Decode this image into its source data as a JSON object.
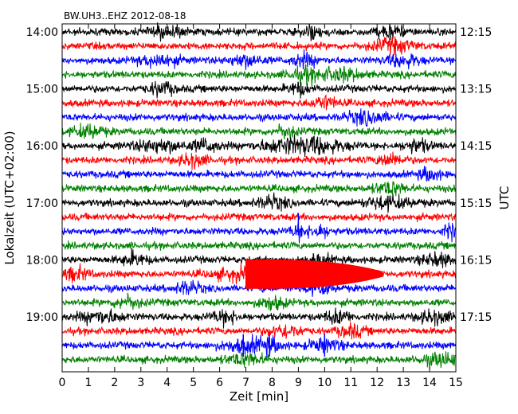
{
  "chart_data": {
    "type": "line",
    "title": "BW.UH3..EHZ 2012-08-18",
    "xlabel": "Zeit  [min]",
    "ylabel_left": "Lokalzeit (UTC+02:00)",
    "ylabel_right": "UTC",
    "xlim": [
      0,
      15
    ],
    "x_ticks": [
      "0",
      "1",
      "2",
      "3",
      "4",
      "5",
      "6",
      "7",
      "8",
      "9",
      "10",
      "11",
      "12",
      "13",
      "14",
      "15"
    ],
    "rows_per_hour": 4,
    "minutes_per_row": 15,
    "row_colors": [
      "#000000",
      "#ff0000",
      "#0000ff",
      "#008000"
    ],
    "left_ticks": [
      {
        "label": "14:00",
        "row": 0
      },
      {
        "label": "15:00",
        "row": 4
      },
      {
        "label": "16:00",
        "row": 8
      },
      {
        "label": "17:00",
        "row": 12
      },
      {
        "label": "18:00",
        "row": 16
      },
      {
        "label": "19:00",
        "row": 20
      }
    ],
    "right_ticks": [
      {
        "label": "12:15",
        "row": 0
      },
      {
        "label": "13:15",
        "row": 4
      },
      {
        "label": "14:15",
        "row": 8
      },
      {
        "label": "15:15",
        "row": 12
      },
      {
        "label": "16:15",
        "row": 16
      },
      {
        "label": "17:15",
        "row": 20
      }
    ],
    "traces": [
      {
        "row": 0,
        "color": "#000000",
        "bursts": [
          [
            4.0,
            0.6
          ],
          [
            9.5,
            0.4
          ],
          [
            12.5,
            0.5
          ]
        ]
      },
      {
        "row": 1,
        "color": "#ff0000",
        "bursts": [
          [
            12.6,
            0.8
          ]
        ]
      },
      {
        "row": 2,
        "color": "#0000ff",
        "bursts": [
          [
            3.7,
            0.7
          ],
          [
            7.0,
            0.6
          ],
          [
            9.2,
            0.5
          ],
          [
            13.0,
            0.6
          ]
        ]
      },
      {
        "row": 3,
        "color": "#008000",
        "bursts": [
          [
            9.2,
            0.6
          ],
          [
            10.6,
            0.8
          ]
        ]
      },
      {
        "row": 4,
        "color": "#000000",
        "bursts": [
          [
            3.8,
            0.5
          ],
          [
            9.0,
            0.4
          ]
        ]
      },
      {
        "row": 5,
        "color": "#ff0000",
        "bursts": [
          [
            10.0,
            0.5
          ]
        ]
      },
      {
        "row": 6,
        "color": "#0000ff",
        "bursts": [
          [
            11.6,
            0.8
          ]
        ]
      },
      {
        "row": 7,
        "color": "#008000",
        "bursts": [
          [
            1.0,
            0.6
          ],
          [
            8.5,
            0.4
          ]
        ]
      },
      {
        "row": 8,
        "color": "#000000",
        "bursts": [
          [
            3.7,
            0.9
          ],
          [
            5.5,
            0.5
          ],
          [
            8.5,
            1.1
          ],
          [
            9.8,
            1.0
          ],
          [
            13.5,
            0.5
          ]
        ]
      },
      {
        "row": 9,
        "color": "#ff0000",
        "bursts": [
          [
            5.0,
            0.5
          ],
          [
            12.5,
            0.5
          ]
        ]
      },
      {
        "row": 10,
        "color": "#0000ff",
        "bursts": [
          [
            14.0,
            0.4
          ]
        ]
      },
      {
        "row": 11,
        "color": "#008000",
        "bursts": [
          [
            12.5,
            0.6
          ]
        ]
      },
      {
        "row": 12,
        "color": "#000000",
        "bursts": [
          [
            8.0,
            0.6
          ],
          [
            12.4,
            0.9
          ]
        ]
      },
      {
        "row": 13,
        "color": "#ff0000",
        "bursts": []
      },
      {
        "row": 14,
        "color": "#0000ff",
        "bursts": [
          [
            9.0,
            0.3
          ],
          [
            9.8,
            0.4
          ],
          [
            14.8,
            0.3
          ]
        ]
      },
      {
        "row": 15,
        "color": "#008000",
        "bursts": []
      },
      {
        "row": 16,
        "color": "#000000",
        "bursts": [
          [
            2.7,
            0.5
          ],
          [
            9.7,
            0.5
          ],
          [
            14.3,
            0.6
          ]
        ]
      },
      {
        "row": 17,
        "color": "#ff0000",
        "bursts": [
          [
            0.5,
            0.5
          ],
          [
            7.0,
            1.2
          ]
        ]
      },
      {
        "row": 18,
        "color": "#0000ff",
        "bursts": [
          [
            4.8,
            0.5
          ],
          [
            9.8,
            0.5
          ]
        ]
      },
      {
        "row": 19,
        "color": "#008000",
        "bursts": [
          [
            2.5,
            0.5
          ],
          [
            8.0,
            0.5
          ]
        ]
      },
      {
        "row": 20,
        "color": "#000000",
        "bursts": [
          [
            1.5,
            0.8
          ],
          [
            6.2,
            0.5
          ],
          [
            10.5,
            0.5
          ],
          [
            14.2,
            0.6
          ]
        ]
      },
      {
        "row": 21,
        "color": "#ff0000",
        "bursts": [
          [
            8.5,
            0.6
          ],
          [
            11.0,
            0.5
          ]
        ]
      },
      {
        "row": 22,
        "color": "#0000ff",
        "bursts": [
          [
            6.9,
            0.8
          ],
          [
            7.9,
            0.5
          ],
          [
            10.0,
            0.6
          ]
        ]
      },
      {
        "row": 23,
        "color": "#008000",
        "bursts": [
          [
            7.0,
            0.7
          ],
          [
            14.5,
            0.8
          ]
        ]
      }
    ],
    "event": {
      "row": 17,
      "color": "#ff0000",
      "start_min": 7.0,
      "end_min": 12.2
    },
    "spikes": [
      {
        "row": 13.5,
        "color": "#0000ff",
        "x_min": 9.0
      },
      {
        "row": 22,
        "color": "#0000ff",
        "x_min": 6.9
      },
      {
        "row": 22,
        "color": "#0000ff",
        "x_min": 7.9
      },
      {
        "row": 22,
        "color": "#0000ff",
        "x_min": 10.0
      }
    ]
  }
}
